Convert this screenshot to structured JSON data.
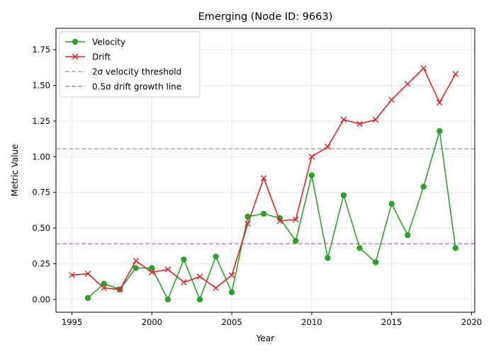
{
  "chart_data": {
    "type": "line",
    "title": "Emerging (Node ID: 9663)",
    "xlabel": "Year",
    "ylabel": "Metric Value",
    "xlim": [
      1994,
      2020.2
    ],
    "ylim": [
      -0.09,
      1.9
    ],
    "xticks": [
      1995,
      2000,
      2005,
      2010,
      2015,
      2020
    ],
    "yticks": [
      0.0,
      0.25,
      0.5,
      0.75,
      1.0,
      1.25,
      1.5,
      1.75
    ],
    "ytick_labels": [
      "0.00",
      "0.25",
      "0.50",
      "0.75",
      "1.00",
      "1.25",
      "1.50",
      "1.75"
    ],
    "grid": true,
    "legend_position": "top-left",
    "series": [
      {
        "name": "Velocity",
        "color": "#2ca02c",
        "marker": "circle",
        "x": [
          1996,
          1997,
          1998,
          1999,
          2000,
          2001,
          2002,
          2003,
          2004,
          2005,
          2006,
          2007,
          2008,
          2009,
          2010,
          2011,
          2012,
          2013,
          2014,
          2015,
          2016,
          2017,
          2018,
          2019
        ],
        "y": [
          0.01,
          0.11,
          0.07,
          0.22,
          0.22,
          0.0,
          0.28,
          0.0,
          0.3,
          0.05,
          0.58,
          0.6,
          0.57,
          0.41,
          0.87,
          0.29,
          0.73,
          0.36,
          0.26,
          0.67,
          0.45,
          0.79,
          1.18,
          0.36
        ]
      },
      {
        "name": "Drift",
        "color": "#d62728",
        "marker": "x",
        "x": [
          1995,
          1996,
          1997,
          1998,
          1999,
          2000,
          2001,
          2002,
          2003,
          2004,
          2005,
          2006,
          2007,
          2008,
          2009,
          2010,
          2011,
          2012,
          2013,
          2014,
          2015,
          2016,
          2017,
          2018,
          2019
        ],
        "y": [
          0.17,
          0.18,
          0.08,
          0.07,
          0.27,
          0.19,
          0.21,
          0.12,
          0.16,
          0.08,
          0.17,
          0.53,
          0.85,
          0.55,
          0.56,
          1.0,
          1.07,
          1.26,
          1.23,
          1.26,
          1.4,
          1.51,
          1.62,
          1.38,
          1.58
        ]
      }
    ],
    "reference_lines": [
      {
        "name": "2σ velocity threshold",
        "y": 1.055,
        "color": "#a9a9a9",
        "style": "dashed"
      },
      {
        "name": "0.5σ drift growth line",
        "y": 0.39,
        "color": "#c27bc4",
        "style": "dashed"
      }
    ]
  }
}
